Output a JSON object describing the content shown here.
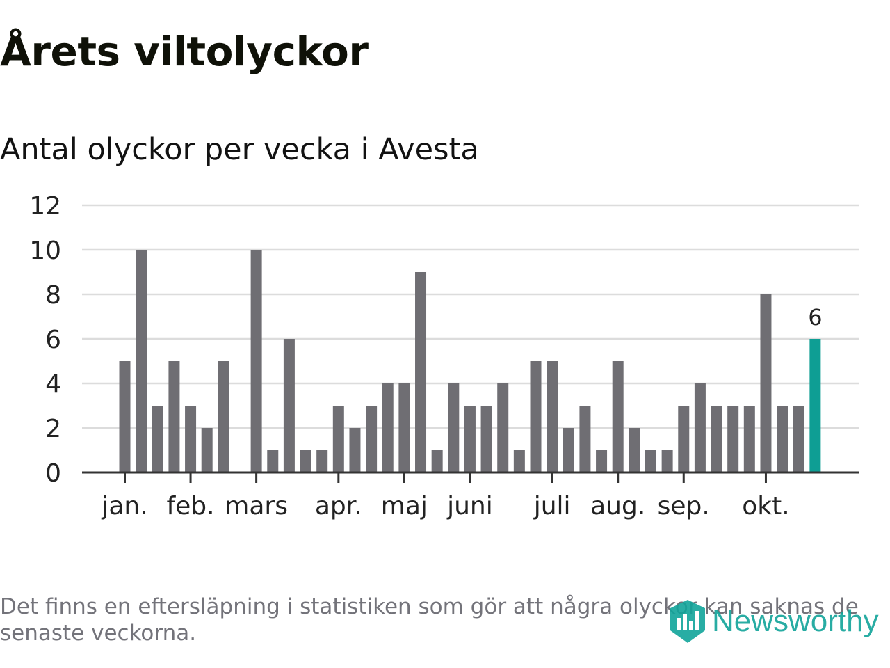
{
  "header": {
    "title": "Årets viltolyckor",
    "subtitle": "Antal olyckor per vecka i Avesta"
  },
  "chart_data": {
    "type": "bar",
    "title": "Årets viltolyckor",
    "subtitle": "Antal olyckor per vecka i Avesta",
    "xlabel": "",
    "ylabel": "",
    "ylim": [
      0,
      12
    ],
    "yticks": [
      0,
      2,
      4,
      6,
      8,
      10,
      12
    ],
    "grid": true,
    "values": [
      5,
      10,
      3,
      5,
      3,
      2,
      5,
      0,
      10,
      1,
      6,
      1,
      1,
      3,
      2,
      3,
      4,
      4,
      9,
      1,
      4,
      3,
      3,
      4,
      1,
      5,
      5,
      2,
      3,
      1,
      5,
      2,
      1,
      1,
      3,
      4,
      3,
      3,
      3,
      8,
      3,
      3,
      6
    ],
    "month_ticks": [
      {
        "label": "jan.",
        "index": 0
      },
      {
        "label": "feb.",
        "index": 4
      },
      {
        "label": "mars",
        "index": 8
      },
      {
        "label": "apr.",
        "index": 13
      },
      {
        "label": "maj",
        "index": 17
      },
      {
        "label": "juni",
        "index": 21
      },
      {
        "label": "juli",
        "index": 26
      },
      {
        "label": "aug.",
        "index": 30
      },
      {
        "label": "sep.",
        "index": 34
      },
      {
        "label": "okt.",
        "index": 39
      }
    ],
    "highlight": {
      "index": 42,
      "value": "6"
    },
    "colors": {
      "bar": "#6f6e73",
      "highlight": "#0e9e94",
      "grid": "#dcdcdc",
      "axis": "#333333",
      "text": "#222222"
    }
  },
  "footer": {
    "note": "Det finns en eftersläpning i statistiken som gör att några olyckor kan saknas de senaste veckorna.",
    "brand": "Newsworthy",
    "brand_icon": "newsworthy-logo-icon",
    "brand_color": "#11a49a"
  }
}
